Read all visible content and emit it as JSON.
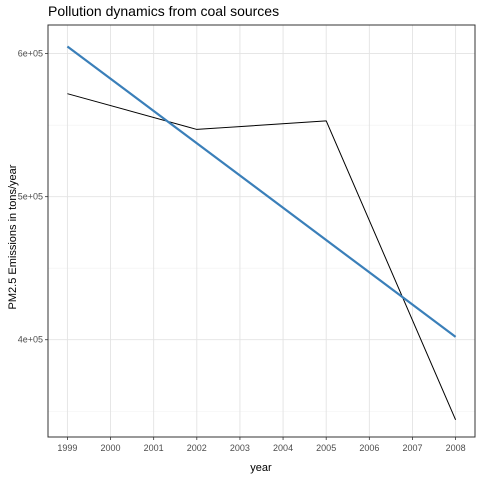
{
  "chart_data": {
    "type": "line",
    "title": "Pollution dynamics from coal sources",
    "xlabel": "year",
    "ylabel": "PM2.5 Emissions in tons/year",
    "x_ticks": [
      "1999",
      "2000",
      "2001",
      "2002",
      "2003",
      "2004",
      "2005",
      "2006",
      "2007",
      "2008"
    ],
    "y_ticks": [
      {
        "value": 400000,
        "label": "4e+05"
      },
      {
        "value": 500000,
        "label": "5e+05"
      },
      {
        "value": 600000,
        "label": "6e+05"
      }
    ],
    "xlim": [
      1998.55,
      2008.45
    ],
    "ylim": [
      332000,
      620000
    ],
    "grid": true,
    "series": [
      {
        "kind": "line",
        "color": "#000000",
        "x": [
          1999,
          2002,
          2005,
          2008
        ],
        "values": [
          572000,
          547000,
          553000,
          344000
        ]
      },
      {
        "kind": "trend",
        "color": "#3a7fb9",
        "x": [
          1999,
          2008
        ],
        "values": [
          605000,
          402000
        ]
      }
    ]
  }
}
